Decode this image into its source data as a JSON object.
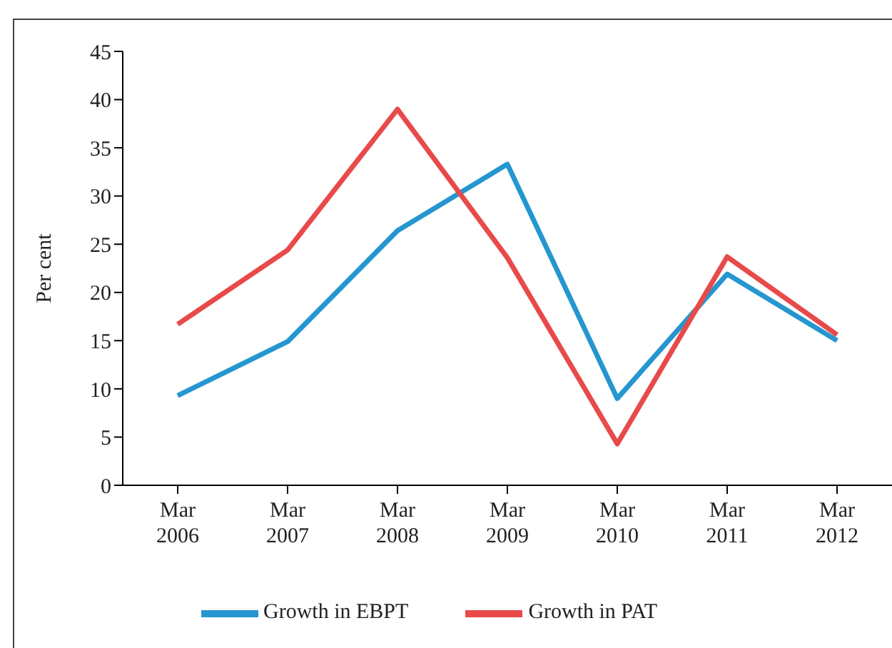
{
  "chart_data": {
    "type": "line",
    "ylabel": "Per cent",
    "categories": [
      "Mar 2006",
      "Mar 2007",
      "Mar 2008",
      "Mar 2009",
      "Mar 2010",
      "Mar 2011",
      "Mar 2012"
    ],
    "series": [
      {
        "name": "Growth in EBPT",
        "color": "#2596d0",
        "values": [
          9.3,
          14.9,
          26.4,
          33.3,
          9.0,
          21.9,
          15.0
        ]
      },
      {
        "name": "Growth in PAT",
        "color": "#e84a4a",
        "values": [
          16.7,
          24.4,
          39.0,
          23.6,
          4.3,
          23.7,
          15.6
        ]
      }
    ],
    "ylim": [
      0,
      45
    ],
    "yticks": [
      0,
      5,
      10,
      15,
      20,
      25,
      30,
      35,
      40,
      45
    ],
    "grid": false,
    "legend": "bottom",
    "marker": "none",
    "line_style": "solid"
  }
}
